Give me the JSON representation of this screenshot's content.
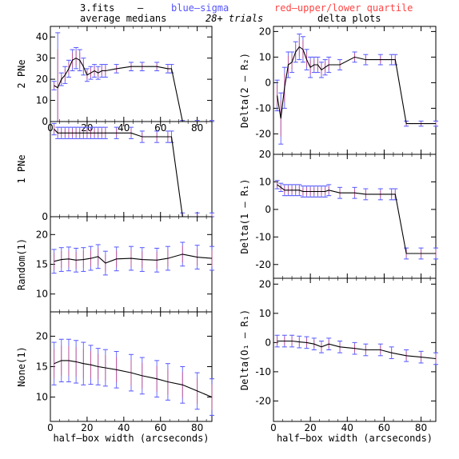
{
  "header": {
    "file": "3.fits",
    "dash": "–",
    "blue_label": "blue–sigma",
    "red_label": "red–upper/lower quartile",
    "left_title": "average medians",
    "trials": "28+ trials",
    "right_title": "delta plots"
  },
  "colors": {
    "line": "#000000",
    "sigma": "#5555ff",
    "quartile": "#ff4444",
    "frame": "#000000"
  },
  "chart_data": [
    {
      "type": "line",
      "panel": "left-1",
      "ylabel": "2 PNe",
      "ylim": [
        0,
        45
      ],
      "xlim": [
        0,
        88
      ],
      "yticks": [
        0,
        10,
        20,
        30,
        40
      ],
      "xticks": [
        0,
        20,
        40,
        60,
        80
      ],
      "xticklabels_shown": true,
      "x": [
        2,
        4,
        6,
        8,
        10,
        12,
        14,
        16,
        18,
        20,
        22,
        24,
        26,
        28,
        30,
        36,
        44,
        50,
        58,
        64,
        66,
        72,
        80,
        88
      ],
      "y": [
        17,
        16,
        20,
        22,
        25,
        29,
        30,
        29,
        26,
        22,
        23,
        24,
        23,
        24,
        24,
        25,
        26,
        26,
        26,
        25,
        25,
        0,
        0,
        0
      ],
      "err": [
        2,
        26,
        3,
        4,
        4,
        5,
        5,
        5,
        4,
        3,
        3,
        3,
        3,
        3,
        3,
        2,
        2,
        2,
        2,
        2,
        2,
        0.5,
        0.5,
        0.5
      ]
    },
    {
      "type": "line",
      "panel": "left-2",
      "ylabel": "1 PNe",
      "ylim": [
        0,
        25
      ],
      "xlim": [
        0,
        88
      ],
      "yticks": [
        0
      ],
      "xticks": [
        0,
        20,
        40,
        60,
        80
      ],
      "xticklabels_shown": false,
      "x": [
        2,
        4,
        6,
        8,
        10,
        12,
        14,
        16,
        18,
        20,
        22,
        24,
        26,
        28,
        30,
        36,
        44,
        50,
        58,
        64,
        66,
        72,
        80,
        88
      ],
      "y": [
        23,
        22,
        22,
        22,
        22,
        22,
        22,
        22,
        22,
        22,
        22,
        22,
        22,
        22,
        22,
        22,
        22,
        21,
        21,
        21,
        21,
        0,
        0,
        0
      ],
      "err": [
        1.5,
        1.5,
        1.5,
        1.5,
        1.5,
        1.5,
        1.5,
        1.5,
        1.5,
        1.5,
        1.5,
        1.5,
        1.5,
        1.5,
        1.5,
        1.5,
        1.5,
        1.5,
        1.5,
        1.5,
        1.5,
        1,
        1,
        1
      ]
    },
    {
      "type": "line",
      "panel": "left-3",
      "ylabel": "Random(1)",
      "ylim": [
        7,
        23
      ],
      "xlim": [
        0,
        88
      ],
      "yticks": [
        10,
        15,
        20
      ],
      "xticks": [
        0,
        20,
        40,
        60,
        80
      ],
      "xticklabels_shown": false,
      "x": [
        2,
        6,
        10,
        14,
        18,
        22,
        26,
        30,
        36,
        44,
        50,
        58,
        64,
        72,
        80,
        88
      ],
      "y": [
        15.5,
        15.8,
        15.9,
        15.7,
        15.8,
        16,
        16.3,
        15.2,
        15.9,
        16,
        15.8,
        15.7,
        16,
        16.7,
        16.2,
        16
      ],
      "err": [
        2,
        2,
        2,
        2,
        2,
        2,
        2,
        2,
        2,
        2,
        2,
        2,
        2,
        2,
        2,
        2
      ]
    },
    {
      "type": "line",
      "panel": "left-4",
      "ylabel": "None(1)",
      "ylim": [
        6,
        24
      ],
      "xlim": [
        0,
        88
      ],
      "yticks": [
        10,
        15,
        20
      ],
      "xticks": [
        0,
        20,
        40,
        60,
        80
      ],
      "xticklabels_shown": true,
      "xlabel": "half–box width (arcseconds)",
      "x": [
        2,
        6,
        10,
        14,
        18,
        22,
        26,
        30,
        36,
        44,
        50,
        58,
        64,
        72,
        80,
        88
      ],
      "y": [
        15.5,
        16,
        16,
        15.8,
        15.5,
        15.3,
        15,
        14.8,
        14.5,
        14,
        13.5,
        13,
        12.5,
        12,
        11,
        10
      ],
      "err": [
        3.5,
        3.5,
        3.5,
        3.5,
        3.5,
        3.2,
        3,
        3,
        3,
        3,
        3,
        3,
        3,
        3,
        3,
        3
      ]
    },
    {
      "type": "line",
      "panel": "right-1",
      "ylabel": "Delta(2 – R₂)",
      "ylim": [
        -28,
        22
      ],
      "xlim": [
        0,
        88
      ],
      "yticks": [
        -20,
        -10,
        0,
        10,
        20
      ],
      "xticks": [
        0,
        20,
        40,
        60,
        80
      ],
      "xticklabels_shown": false,
      "x": [
        2,
        4,
        6,
        8,
        10,
        12,
        14,
        16,
        18,
        20,
        22,
        24,
        26,
        28,
        30,
        36,
        44,
        50,
        58,
        64,
        66,
        72,
        80,
        88
      ],
      "y": [
        -5,
        -14,
        -2,
        7,
        8,
        12,
        14,
        13,
        9,
        6,
        7,
        7,
        5,
        6,
        7,
        7,
        10,
        9,
        9,
        9,
        9,
        -16,
        -16,
        -16
      ],
      "err": [
        6,
        10,
        8,
        5,
        4,
        4,
        5,
        5,
        4,
        4,
        3,
        3,
        3,
        3,
        3,
        2,
        2,
        2,
        2,
        2,
        2,
        1,
        1,
        1
      ]
    },
    {
      "type": "line",
      "panel": "right-2",
      "ylabel": "Delta(1 – R₁)",
      "ylim": [
        -25,
        20
      ],
      "xlim": [
        0,
        88
      ],
      "yticks": [
        -20,
        -10,
        0,
        10,
        20
      ],
      "xticks": [
        0,
        20,
        40,
        60,
        80
      ],
      "xticklabels_shown": false,
      "x": [
        2,
        4,
        6,
        8,
        10,
        12,
        14,
        16,
        18,
        20,
        22,
        24,
        26,
        28,
        30,
        36,
        44,
        50,
        58,
        64,
        66,
        72,
        80,
        88
      ],
      "y": [
        9,
        8,
        7,
        7,
        7,
        7,
        7,
        6.5,
        6.5,
        6.5,
        6.5,
        6.5,
        6.5,
        6.5,
        7,
        6,
        6,
        5.5,
        5.5,
        5.5,
        5.5,
        -16,
        -16,
        -16
      ],
      "err": [
        1.5,
        1.5,
        2,
        2,
        2,
        2,
        2,
        2,
        2,
        2,
        2,
        2,
        2,
        2,
        2,
        2,
        2,
        2,
        2,
        2,
        2,
        2,
        2,
        2
      ]
    },
    {
      "type": "line",
      "panel": "right-3",
      "ylabel": "Delta(O₁ – R₁)",
      "ylim": [
        -27,
        22
      ],
      "xlim": [
        0,
        88
      ],
      "yticks": [
        -20,
        -10,
        0,
        10,
        20
      ],
      "xticks": [
        0,
        20,
        40,
        60,
        80
      ],
      "xticklabels_shown": true,
      "xlabel": "half–box width (arcseconds)",
      "x": [
        2,
        6,
        10,
        14,
        18,
        22,
        26,
        30,
        36,
        44,
        50,
        58,
        64,
        72,
        80,
        88
      ],
      "y": [
        0.5,
        0.5,
        0.5,
        0.2,
        0,
        -0.5,
        -1.5,
        -0.5,
        -1.5,
        -2,
        -2.5,
        -2.5,
        -3.5,
        -4.5,
        -5,
        -5.5
      ],
      "err": [
        2,
        2,
        2,
        2,
        2,
        2,
        2,
        2,
        2,
        2,
        2,
        2,
        2,
        2,
        2,
        2
      ]
    }
  ]
}
